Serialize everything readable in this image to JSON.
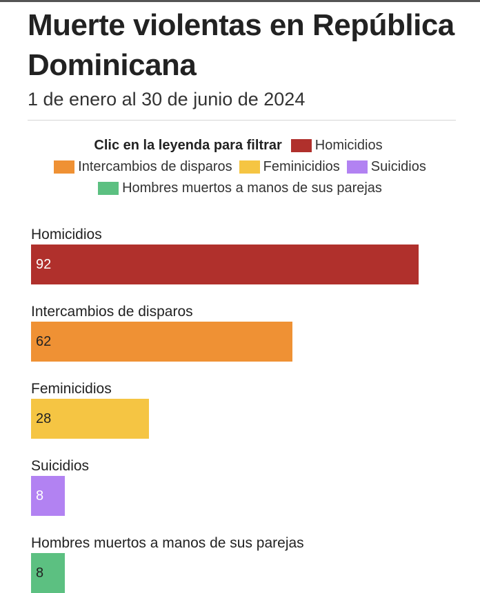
{
  "chart_data": {
    "type": "bar",
    "orientation": "horizontal",
    "title": "Muerte violentas en República Dominicana",
    "subtitle": "1 de enero al 30 de junio de 2024",
    "legend_title": "Clic en la leyenda para filtrar",
    "legend_placement": "top",
    "categories": [
      "Homicidios",
      "Intercambios de disparos",
      "Feminicidios",
      "Suicidios",
      "Hombres muertos a manos de sus parejas"
    ],
    "values": [
      92,
      62,
      28,
      8,
      8
    ],
    "colors": [
      "#b0302c",
      "#ef9134",
      "#f5c543",
      "#b282f2",
      "#5cc081"
    ],
    "value_label_colors": [
      "#ffffff",
      "#222222",
      "#222222",
      "#ffffff",
      "#222222"
    ],
    "xlim": [
      0,
      100
    ],
    "grid": false
  }
}
